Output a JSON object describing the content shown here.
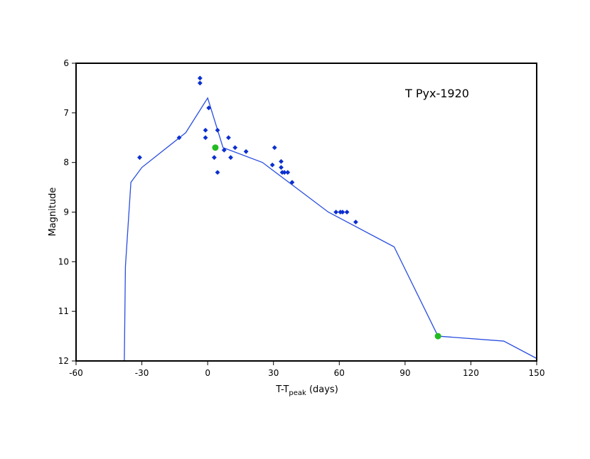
{
  "chart_data": {
    "type": "scatter",
    "title": "",
    "annotation": "T Pyx-1920",
    "xlabel": {
      "main": "T-T",
      "subscript": "peak",
      "suffix": " (days)"
    },
    "ylabel": "Magnitude",
    "xlim": [
      -60,
      150
    ],
    "ylim": [
      12,
      6
    ],
    "y_inverted": true,
    "grid": false,
    "legend": "none",
    "x_ticks": [
      "-60",
      "-30",
      "0",
      "30",
      "60",
      "90",
      "120",
      "150"
    ],
    "y_ticks": [
      "6",
      "7",
      "8",
      "9",
      "10",
      "11",
      "12"
    ],
    "colors": {
      "points": "#0b2fcf",
      "line": "#2a4ee0",
      "highlight": "#22bb22"
    },
    "series": [
      {
        "kind": "points",
        "marker": "diamond",
        "x": [
          -31,
          -13,
          -3.5,
          -3.5,
          -1,
          -1,
          0.5,
          3,
          4.5,
          4.5,
          7.5,
          9.5,
          10.5,
          12.5,
          17.5,
          29.5,
          30.5,
          33.5,
          33.5,
          34,
          35,
          36.5,
          38.5,
          58.5,
          60.5,
          61.5,
          63.5,
          67.5
        ],
        "y": [
          7.9,
          7.5,
          6.3,
          6.4,
          7.35,
          7.5,
          6.9,
          7.9,
          7.35,
          8.2,
          7.75,
          7.5,
          7.9,
          7.7,
          7.78,
          8.05,
          7.7,
          7.98,
          8.1,
          8.2,
          8.2,
          8.2,
          8.4,
          9.0,
          9.0,
          9.0,
          9.0,
          9.2
        ]
      },
      {
        "kind": "line",
        "x": [
          -38,
          -37.5,
          -35,
          -30,
          -10,
          0,
          7,
          25,
          55,
          85,
          105,
          135,
          150
        ],
        "y": [
          12.0,
          10.1,
          8.4,
          8.1,
          7.4,
          6.7,
          7.7,
          8.0,
          9.0,
          9.7,
          11.5,
          11.6,
          11.95
        ]
      },
      {
        "kind": "highlight",
        "marker": "circle",
        "x": [
          3.5,
          105
        ],
        "y": [
          7.7,
          11.5
        ]
      }
    ]
  }
}
